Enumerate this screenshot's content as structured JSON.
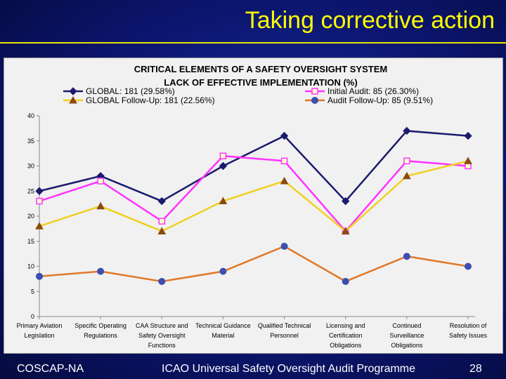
{
  "slide": {
    "title": "Taking corrective action",
    "footer_left": "COSCAP-NA",
    "footer_center": "ICAO Universal Safety Oversight Audit Programme",
    "footer_page": "28"
  },
  "colors": {
    "background": "#0c1670",
    "title": "#ffff00",
    "global": "#1a1a6e",
    "initial_audit": "#ff33ff",
    "global_follow_up": "#f0d020",
    "audit_follow_up": "#e07828"
  },
  "chart_data": {
    "type": "line",
    "title": "CRITICAL ELEMENTS OF A SAFETY OVERSIGHT SYSTEM",
    "subtitle": "LACK OF EFFECTIVE IMPLEMENTATION (%)",
    "legend_position": "top",
    "ylim": [
      0,
      40
    ],
    "yticks": [
      "0",
      "5",
      "10",
      "15",
      "20",
      "25",
      "30",
      "35",
      "40"
    ],
    "grid": false,
    "categories": [
      [
        "Primary Aviation",
        "Legislation"
      ],
      [
        "Specific Operating",
        "Regulations"
      ],
      [
        "CAA Structure and",
        "Safety Oversight",
        "Functions"
      ],
      [
        "Technical Guidance",
        "Material"
      ],
      [
        "Qualified Technical",
        "Personnel"
      ],
      [
        "Licensing and",
        "Certification",
        "Obligations"
      ],
      [
        "Continued",
        "Surveillance",
        "Obligations"
      ],
      [
        "Resolution of",
        "Safety Issues"
      ]
    ],
    "series": [
      {
        "name": "GLOBAL: 181 (29.58%)",
        "marker": "diamond",
        "color": "#1a1a6e",
        "values": [
          25,
          28,
          23,
          30,
          36,
          23,
          37,
          36
        ]
      },
      {
        "name": "Initial Audit: 85 (26.30%)",
        "marker": "square",
        "color": "#ff33ff",
        "values": [
          23,
          27,
          19,
          32,
          31,
          17,
          31,
          30
        ]
      },
      {
        "name": "GLOBAL Follow-Up: 181 (22.56%)",
        "marker": "triangle",
        "color": "#f0d020",
        "values": [
          18,
          22,
          17,
          23,
          27,
          17,
          28,
          31
        ]
      },
      {
        "name": "Audit Follow-Up: 85 (9.51%)",
        "marker": "circle",
        "color": "#e07828",
        "values": [
          8,
          9,
          7,
          9,
          14,
          7,
          12,
          10
        ]
      }
    ]
  }
}
